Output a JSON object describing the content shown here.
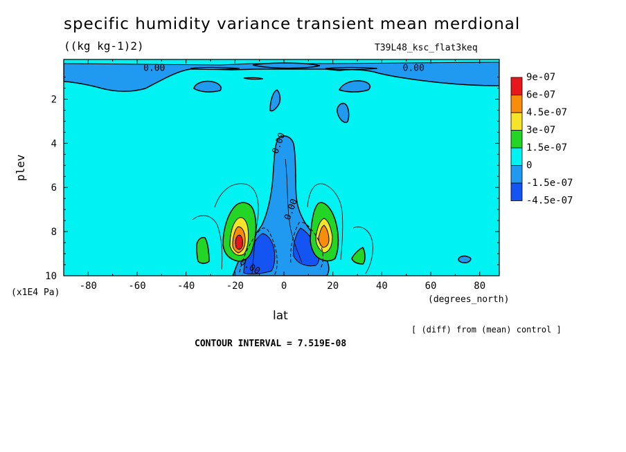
{
  "header": {
    "title": "specific humidity variance transient mean merdional",
    "units": "((kg kg-1)2)",
    "dataset": "T39L48_ksc_flat3keq"
  },
  "footer": {
    "y_units": "(x1E4 Pa)",
    "x_units": "(degrees_north)",
    "diff_note": "[ (diff) from (mean) control ]",
    "contour_interval": "CONTOUR INTERVAL = 7.519E-08"
  },
  "chart_data": {
    "type": "heatmap",
    "title": "specific humidity variance transient mean merdional",
    "xlabel": "lat",
    "ylabel": "plev",
    "xlim": [
      -90,
      88
    ],
    "ylim": [
      0.2,
      10
    ],
    "y_inverted": true,
    "x_ticks": [
      -80,
      -60,
      -40,
      -20,
      0,
      20,
      40,
      60,
      80
    ],
    "y_ticks": [
      2,
      4,
      6,
      8,
      10
    ],
    "colorbar": {
      "labels": [
        "9e-07",
        "6e-07",
        "4.5e-07",
        "3e-07",
        "1.5e-07",
        "0",
        "-1.5e-07",
        "-4.5e-07"
      ],
      "colors": [
        "#e8171c",
        "#f88d0b",
        "#f5e42a",
        "#23d524",
        "#00f2f2",
        "#209af0",
        "#1354f2"
      ]
    },
    "contour_labels": [
      {
        "text": "0.00",
        "lat": -53,
        "plev": 0.6
      },
      {
        "text": "0.00",
        "lat": 53,
        "plev": 0.6
      },
      {
        "text": "0.00",
        "lat": -2,
        "plev": 4.0
      },
      {
        "text": "0.00",
        "lat": 3,
        "plev": 7.0
      },
      {
        "text": "0.00",
        "lat": -14,
        "plev": 9.6
      }
    ],
    "contour_interval": 7.519e-08,
    "regions": [
      {
        "level": "-1.5e-07",
        "desc": "near-surface shallow negative band",
        "lat": [
          -90,
          88
        ],
        "plev": [
          0.2,
          1.0
        ]
      },
      {
        "level": "-1.5e-07",
        "desc": "equatorial negative tongue",
        "lat": [
          -10,
          10
        ],
        "plev": [
          3.6,
          10
        ]
      },
      {
        "level": "-4.5e-07",
        "desc": "deep negative cores",
        "lat": [
          -15,
          15
        ],
        "plev": [
          7.5,
          10
        ]
      },
      {
        "level": "9e-07",
        "desc": "positive maximum SH",
        "lat": -18,
        "plev": 8.3
      },
      {
        "level": "6e-07",
        "desc": "positive maximum NH",
        "lat": 17,
        "plev": 8.2
      },
      {
        "level": "1.5e-07",
        "desc": "secondary positive patches",
        "lat": [
          -33,
          32
        ],
        "plev": [
          8.1,
          9.3
        ]
      }
    ]
  }
}
